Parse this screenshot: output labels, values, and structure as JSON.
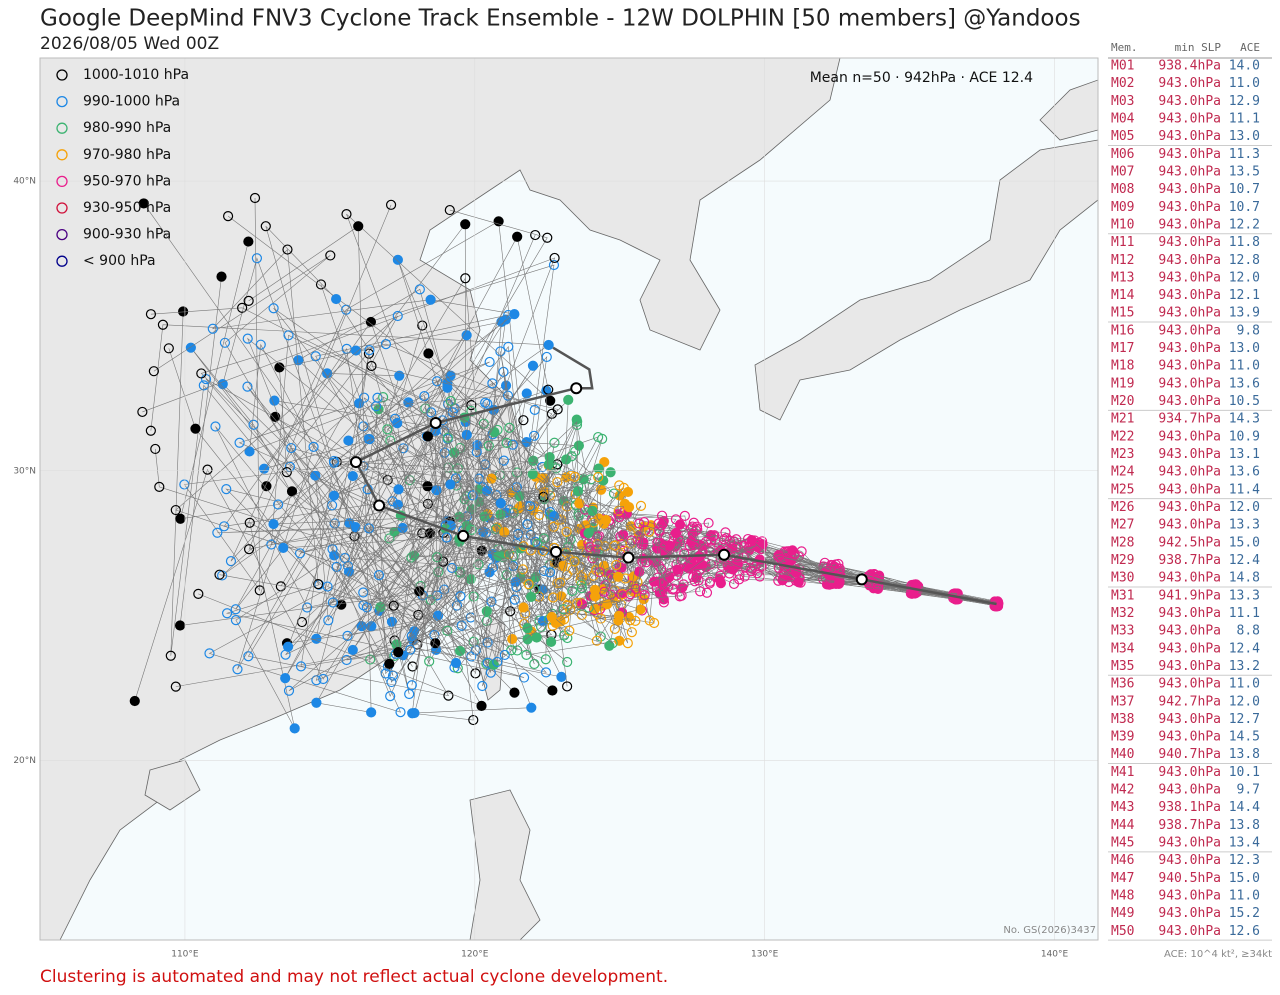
{
  "title": "Google DeepMind FNV3 Cyclone Track Ensemble - 12W DOLPHIN [50 members] @Yandoos",
  "subtitle": "2026/08/05 Wed 00Z",
  "legend": [
    {
      "label": "1000-1010 hPa",
      "color": "#000000"
    },
    {
      "label": "990-1000 hPa",
      "color": "#1e88e5"
    },
    {
      "label": "980-990 hPa",
      "color": "#3cb371"
    },
    {
      "label": "970-980 hPa",
      "color": "#f5a20a"
    },
    {
      "label": "950-970 hPa",
      "color": "#e91e8c"
    },
    {
      "label": "930-950 hPa",
      "color": "#d0103a"
    },
    {
      "label": "900-930 hPa",
      "color": "#4b0082"
    },
    {
      "label": "< 900 hPa",
      "color": "#00008b"
    }
  ],
  "mean_label": "Mean n=50 · 942hPa · ACE 12.4",
  "map": {
    "lonlim": [
      105,
      141.5
    ],
    "latlim": [
      13.8,
      44.25
    ],
    "xticks": [
      {
        "value": 110,
        "label": "110°E"
      },
      {
        "value": 120,
        "label": "120°E"
      },
      {
        "value": 130,
        "label": "130°E"
      },
      {
        "value": 140,
        "label": "140°E"
      }
    ],
    "yticks": [
      {
        "value": 20,
        "label": "20°N"
      },
      {
        "value": 30,
        "label": "30°N"
      },
      {
        "value": 40,
        "label": "40°N"
      }
    ]
  },
  "mean_track": {
    "lon": [
      138.0,
      133.35,
      128.6,
      125.3,
      122.8,
      119.6,
      116.7,
      115.9,
      118.65,
      123.5,
      124.05,
      123.95,
      122.7
    ],
    "lat": [
      25.4,
      26.25,
      27.1,
      27.0,
      27.2,
      27.75,
      28.8,
      30.3,
      31.65,
      32.85,
      32.85,
      33.5,
      34.25
    ]
  },
  "credit": "No. GS(2026)3437",
  "table": {
    "header": [
      "Mem.",
      "min SLP",
      "ACE"
    ],
    "rows": [
      [
        "M01",
        "938.4hPa",
        "14.0"
      ],
      [
        "M02",
        "943.0hPa",
        "11.0"
      ],
      [
        "M03",
        "943.0hPa",
        "12.9"
      ],
      [
        "M04",
        "943.0hPa",
        "11.1"
      ],
      [
        "M05",
        "943.0hPa",
        "13.0"
      ],
      [
        "M06",
        "943.0hPa",
        "11.3"
      ],
      [
        "M07",
        "943.0hPa",
        "13.5"
      ],
      [
        "M08",
        "943.0hPa",
        "10.7"
      ],
      [
        "M09",
        "943.0hPa",
        "10.7"
      ],
      [
        "M10",
        "943.0hPa",
        "12.2"
      ],
      [
        "M11",
        "943.0hPa",
        "11.8"
      ],
      [
        "M12",
        "943.0hPa",
        "12.8"
      ],
      [
        "M13",
        "943.0hPa",
        "12.0"
      ],
      [
        "M14",
        "943.0hPa",
        "12.1"
      ],
      [
        "M15",
        "943.0hPa",
        "13.9"
      ],
      [
        "M16",
        "943.0hPa",
        "9.8"
      ],
      [
        "M17",
        "943.0hPa",
        "13.0"
      ],
      [
        "M18",
        "943.0hPa",
        "11.0"
      ],
      [
        "M19",
        "943.0hPa",
        "13.6"
      ],
      [
        "M20",
        "943.0hPa",
        "10.5"
      ],
      [
        "M21",
        "934.7hPa",
        "14.3"
      ],
      [
        "M22",
        "943.0hPa",
        "10.9"
      ],
      [
        "M23",
        "943.0hPa",
        "13.1"
      ],
      [
        "M24",
        "943.0hPa",
        "13.6"
      ],
      [
        "M25",
        "943.0hPa",
        "11.4"
      ],
      [
        "M26",
        "943.0hPa",
        "12.0"
      ],
      [
        "M27",
        "943.0hPa",
        "13.3"
      ],
      [
        "M28",
        "942.5hPa",
        "15.0"
      ],
      [
        "M29",
        "938.7hPa",
        "12.4"
      ],
      [
        "M30",
        "943.0hPa",
        "14.8"
      ],
      [
        "M31",
        "941.9hPa",
        "13.3"
      ],
      [
        "M32",
        "943.0hPa",
        "11.1"
      ],
      [
        "M33",
        "943.0hPa",
        "8.8"
      ],
      [
        "M34",
        "943.0hPa",
        "12.4"
      ],
      [
        "M35",
        "943.0hPa",
        "13.2"
      ],
      [
        "M36",
        "943.0hPa",
        "11.0"
      ],
      [
        "M37",
        "942.7hPa",
        "12.0"
      ],
      [
        "M38",
        "943.0hPa",
        "12.7"
      ],
      [
        "M39",
        "943.0hPa",
        "14.5"
      ],
      [
        "M40",
        "940.7hPa",
        "13.8"
      ],
      [
        "M41",
        "943.0hPa",
        "10.1"
      ],
      [
        "M42",
        "943.0hPa",
        "9.7"
      ],
      [
        "M43",
        "938.1hPa",
        "14.4"
      ],
      [
        "M44",
        "938.7hPa",
        "13.8"
      ],
      [
        "M45",
        "943.0hPa",
        "13.4"
      ],
      [
        "M46",
        "943.0hPa",
        "12.3"
      ],
      [
        "M47",
        "940.5hPa",
        "15.0"
      ],
      [
        "M48",
        "943.0hPa",
        "11.0"
      ],
      [
        "M49",
        "943.0hPa",
        "15.2"
      ],
      [
        "M50",
        "943.0hPa",
        "12.6"
      ]
    ]
  },
  "footer_right": "ACE: 10^4 kt², ≥34kt",
  "note": "Clustering is automated and may not reflect actual cyclone development."
}
